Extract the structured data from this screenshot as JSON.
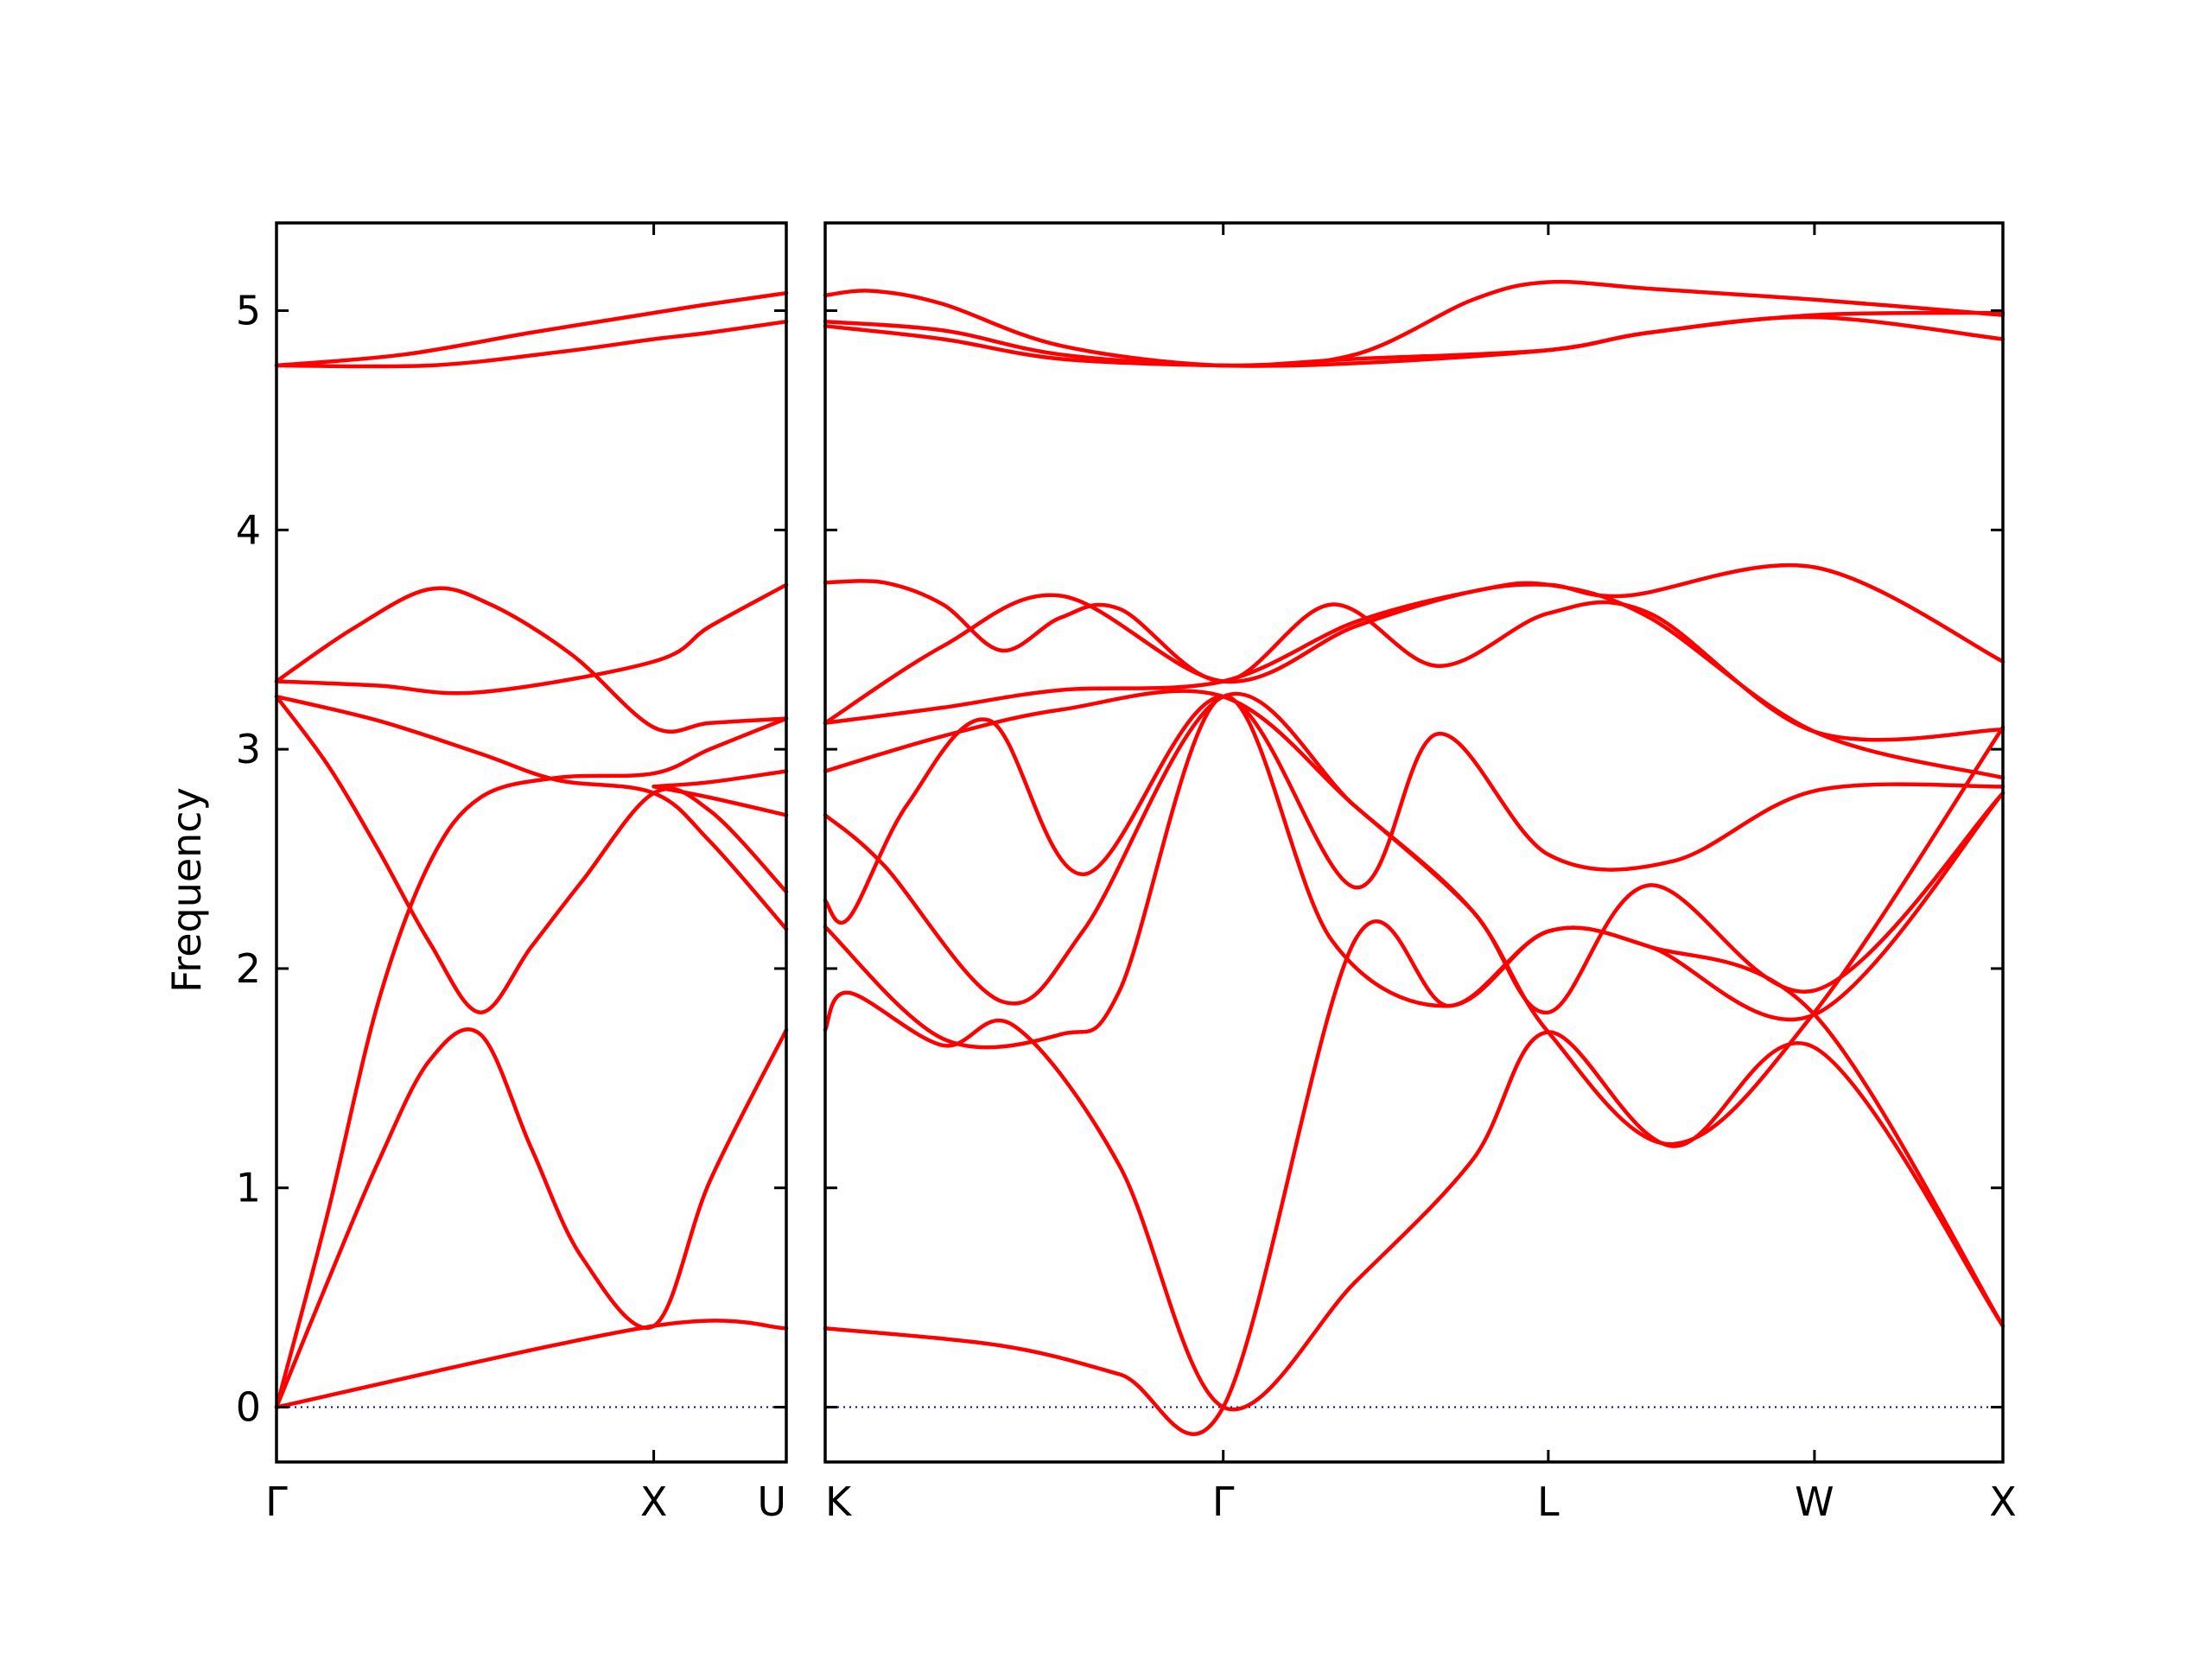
{
  "chart_data": {
    "type": "line",
    "ylabel": "Frequency",
    "ylim": [
      -0.25,
      5.4
    ],
    "yticks": [
      "0",
      "1",
      "2",
      "3",
      "4",
      "5"
    ],
    "colors": {
      "bands": "#ff0000",
      "zero_line": "#0000aa",
      "frame": "#000000"
    },
    "grid": false,
    "panels": [
      {
        "xlim": [
          0,
          1
        ],
        "xticks": [
          {
            "x": 0,
            "label": "Γ"
          },
          {
            "x": 0.74,
            "label": "X"
          },
          {
            "x": 1,
            "label": "U"
          }
        ],
        "series": [
          {
            "points": [
              [
                0,
                4.75
              ],
              [
                0.25,
                4.8
              ],
              [
                0.5,
                4.9
              ],
              [
                0.74,
                4.99
              ],
              [
                0.85,
                5.03
              ],
              [
                1,
                5.08
              ]
            ]
          },
          {
            "points": [
              [
                0,
                4.75
              ],
              [
                0.3,
                4.75
              ],
              [
                0.55,
                4.81
              ],
              [
                0.74,
                4.87
              ],
              [
                0.85,
                4.9
              ],
              [
                1,
                4.95
              ]
            ]
          },
          {
            "points": [
              [
                0,
                3.31
              ],
              [
                0.15,
                3.55
              ],
              [
                0.3,
                3.73
              ],
              [
                0.42,
                3.66
              ],
              [
                0.58,
                3.43
              ],
              [
                0.74,
                3.1
              ],
              [
                0.85,
                3.12
              ],
              [
                1,
                3.14
              ]
            ]
          },
          {
            "points": [
              [
                0,
                3.31
              ],
              [
                0.2,
                3.29
              ],
              [
                0.4,
                3.26
              ],
              [
                0.74,
                3.4
              ],
              [
                0.85,
                3.56
              ],
              [
                1,
                3.75
              ]
            ]
          },
          {
            "points": [
              [
                0,
                3.24
              ],
              [
                0.2,
                3.13
              ],
              [
                0.4,
                2.98
              ],
              [
                0.55,
                2.86
              ],
              [
                0.74,
                2.8
              ],
              [
                0.85,
                2.58
              ],
              [
                1,
                2.18
              ]
            ]
          },
          {
            "points": [
              [
                0,
                3.24
              ],
              [
                0.1,
                2.93
              ],
              [
                0.2,
                2.54
              ],
              [
                0.3,
                2.12
              ],
              [
                0.4,
                1.8
              ],
              [
                0.5,
                2.1
              ],
              [
                0.6,
                2.4
              ],
              [
                0.74,
                2.8
              ],
              [
                0.85,
                2.72
              ],
              [
                1,
                2.35
              ]
            ]
          },
          {
            "points": [
              [
                0,
                0
              ],
              [
                0.1,
                0.88
              ],
              [
                0.2,
                1.85
              ],
              [
                0.3,
                2.48
              ],
              [
                0.4,
                2.78
              ],
              [
                0.55,
                2.87
              ],
              [
                0.74,
                2.89
              ],
              [
                0.85,
                3.0
              ],
              [
                1,
                3.14
              ]
            ]
          },
          {
            "points": [
              [
                0,
                0
              ],
              [
                0.1,
                0.57
              ],
              [
                0.2,
                1.12
              ],
              [
                0.3,
                1.58
              ],
              [
                0.4,
                1.7
              ],
              [
                0.5,
                1.18
              ],
              [
                0.6,
                0.68
              ],
              [
                0.74,
                0.37
              ],
              [
                0.85,
                1.03
              ],
              [
                1,
                1.72
              ]
            ]
          },
          {
            "points": [
              [
                0,
                0
              ],
              [
                0.74,
                0.37
              ],
              [
                1,
                0.36
              ]
            ]
          },
          {
            "points": [
              [
                0.74,
                2.83
              ],
              [
                0.85,
                2.85
              ],
              [
                1,
                2.9
              ]
            ]
          },
          {
            "points": [
              [
                0.74,
                2.83
              ],
              [
                0.85,
                2.78
              ],
              [
                1,
                2.7
              ]
            ]
          }
        ]
      },
      {
        "xlim": [
          0,
          1
        ],
        "xticks": [
          {
            "x": 0,
            "label": "K"
          },
          {
            "x": 0.338,
            "label": "Γ"
          },
          {
            "x": 0.614,
            "label": "L"
          },
          {
            "x": 0.84,
            "label": "W"
          },
          {
            "x": 1,
            "label": "X"
          }
        ],
        "series": [
          {
            "points": [
              [
                0,
                5.07
              ],
              [
                0.04,
                5.09
              ],
              [
                0.1,
                5.03
              ],
              [
                0.2,
                4.84
              ],
              [
                0.338,
                4.75
              ],
              [
                0.45,
                4.8
              ],
              [
                0.55,
                5.05
              ],
              [
                0.614,
                5.13
              ],
              [
                0.7,
                5.1
              ],
              [
                0.84,
                5.05
              ],
              [
                1,
                4.98
              ]
            ]
          },
          {
            "points": [
              [
                0,
                4.95
              ],
              [
                0.1,
                4.91
              ],
              [
                0.2,
                4.8
              ],
              [
                0.338,
                4.75
              ],
              [
                0.45,
                4.78
              ],
              [
                0.614,
                4.82
              ],
              [
                0.7,
                4.9
              ],
              [
                0.84,
                4.97
              ],
              [
                1,
                4.87
              ]
            ]
          },
          {
            "points": [
              [
                0,
                4.93
              ],
              [
                0.1,
                4.87
              ],
              [
                0.2,
                4.78
              ],
              [
                0.338,
                4.75
              ],
              [
                0.45,
                4.76
              ],
              [
                0.614,
                4.82
              ],
              [
                0.7,
                4.9
              ],
              [
                0.84,
                4.98
              ],
              [
                1,
                4.99
              ]
            ]
          },
          {
            "points": [
              [
                0,
                3.76
              ],
              [
                0.05,
                3.76
              ],
              [
                0.1,
                3.66
              ],
              [
                0.15,
                3.45
              ],
              [
                0.2,
                3.6
              ],
              [
                0.25,
                3.64
              ],
              [
                0.338,
                3.31
              ],
              [
                0.43,
                3.66
              ],
              [
                0.52,
                3.38
              ],
              [
                0.614,
                3.62
              ],
              [
                0.7,
                3.62
              ],
              [
                0.84,
                3.08
              ],
              [
                1,
                3.09
              ]
            ]
          },
          {
            "points": [
              [
                0,
                3.12
              ],
              [
                0.1,
                3.47
              ],
              [
                0.2,
                3.7
              ],
              [
                0.338,
                3.31
              ],
              [
                0.45,
                3.56
              ],
              [
                0.55,
                3.72
              ],
              [
                0.614,
                3.75
              ],
              [
                0.68,
                3.7
              ],
              [
                0.84,
                3.83
              ],
              [
                1,
                3.4
              ]
            ]
          },
          {
            "points": [
              [
                0,
                3.12
              ],
              [
                0.1,
                3.19
              ],
              [
                0.2,
                3.27
              ],
              [
                0.338,
                3.31
              ],
              [
                0.45,
                3.58
              ],
              [
                0.55,
                3.72
              ],
              [
                0.614,
                3.75
              ],
              [
                0.7,
                3.6
              ],
              [
                0.84,
                3.08
              ],
              [
                1,
                2.87
              ]
            ]
          },
          {
            "points": [
              [
                0,
                2.9
              ],
              [
                0.1,
                3.06
              ],
              [
                0.2,
                3.18
              ],
              [
                0.338,
                3.24
              ],
              [
                0.45,
                2.74
              ],
              [
                0.55,
                2.26
              ],
              [
                0.614,
                1.8
              ],
              [
                0.7,
                2.38
              ],
              [
                0.84,
                1.9
              ],
              [
                1,
                2.8
              ]
            ]
          },
          {
            "points": [
              [
                0,
                2.31
              ],
              [
                0.02,
                2.23
              ],
              [
                0.07,
                2.75
              ],
              [
                0.14,
                3.13
              ],
              [
                0.22,
                2.43
              ],
              [
                0.338,
                3.24
              ],
              [
                0.45,
                2.37
              ],
              [
                0.52,
                3.07
              ],
              [
                0.614,
                2.52
              ],
              [
                0.72,
                2.49
              ],
              [
                0.84,
                2.81
              ],
              [
                1,
                2.83
              ]
            ]
          },
          {
            "points": [
              [
                0,
                2.7
              ],
              [
                0.05,
                2.47
              ],
              [
                0.15,
                1.85
              ],
              [
                0.22,
                2.18
              ],
              [
                0.338,
                3.24
              ],
              [
                0.45,
                2.74
              ],
              [
                0.55,
                2.26
              ],
              [
                0.614,
                1.71
              ],
              [
                0.72,
                1.2
              ],
              [
                0.84,
                1.8
              ],
              [
                1,
                3.1
              ]
            ]
          },
          {
            "points": [
              [
                0,
                2.19
              ],
              [
                0.1,
                1.68
              ],
              [
                0.2,
                1.7
              ],
              [
                0.25,
                1.9
              ],
              [
                0.338,
                3.24
              ],
              [
                0.43,
                2.13
              ],
              [
                0.53,
                1.83
              ],
              [
                0.614,
                2.17
              ],
              [
                0.7,
                2.1
              ],
              [
                0.84,
                1.79
              ],
              [
                1,
                0.37
              ]
            ]
          },
          {
            "points": [
              [
                0,
                1.72
              ],
              [
                0.02,
                1.89
              ],
              [
                0.1,
                1.65
              ],
              [
                0.16,
                1.74
              ],
              [
                0.25,
                1.1
              ],
              [
                0.338,
                0
              ],
              [
                0.45,
                0.57
              ],
              [
                0.55,
                1.13
              ],
              [
                0.614,
                1.71
              ],
              [
                0.72,
                1.19
              ],
              [
                0.84,
                1.64
              ],
              [
                1,
                0.37
              ]
            ]
          },
          {
            "points": [
              [
                0,
                0.36
              ],
              [
                0.15,
                0.28
              ],
              [
                0.25,
                0.15
              ],
              [
                0.338,
                0
              ],
              [
                0.45,
                2.13
              ],
              [
                0.53,
                1.83
              ],
              [
                0.614,
                2.17
              ],
              [
                0.7,
                2.1
              ],
              [
                0.84,
                1.79
              ],
              [
                1,
                2.8
              ]
            ]
          }
        ]
      }
    ]
  }
}
